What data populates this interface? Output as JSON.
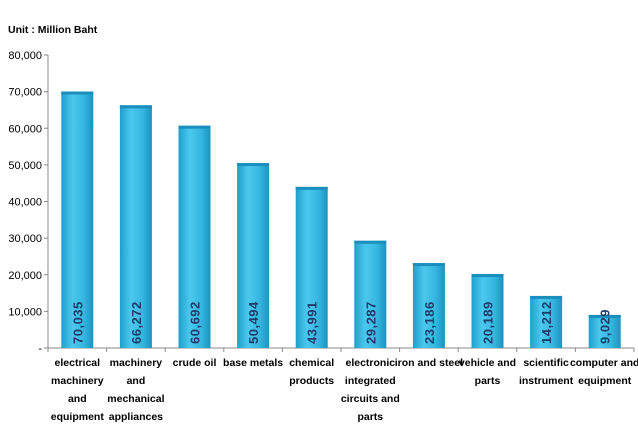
{
  "chart_data": {
    "type": "bar",
    "unit_label": "Unit : Million Baht",
    "categories": [
      [
        "electrical",
        "machinery",
        "and",
        "equipment"
      ],
      [
        "machinery",
        "and",
        "mechanical",
        "appliances"
      ],
      [
        "crude oil"
      ],
      [
        "base metals"
      ],
      [
        "chemical",
        "products"
      ],
      [
        "electronic",
        "integrated",
        "circuits and",
        "parts"
      ],
      [
        "iron and steel"
      ],
      [
        "vehicle and",
        "parts"
      ],
      [
        "scientific",
        "instrument"
      ],
      [
        "computer and",
        "equipment"
      ]
    ],
    "values": [
      70035,
      66272,
      60692,
      50494,
      43991,
      29287,
      23186,
      20189,
      14212,
      9029
    ],
    "value_labels": [
      "70,035",
      "66,272",
      "60,692",
      "50,494",
      "43,991",
      "29,287",
      "23,186",
      "20,189",
      "14,212",
      "9,029"
    ],
    "ylim": [
      0,
      80000
    ],
    "yticks": [
      0,
      10000,
      20000,
      30000,
      40000,
      50000,
      60000,
      70000,
      80000
    ],
    "ytick_labels": [
      "-",
      "10,000",
      "20,000",
      "30,000",
      "40,000",
      "50,000",
      "60,000",
      "70,000",
      "80,000"
    ],
    "grid": false,
    "bar_color": "#33b6df",
    "value_label_color": "#1f3d6b"
  }
}
